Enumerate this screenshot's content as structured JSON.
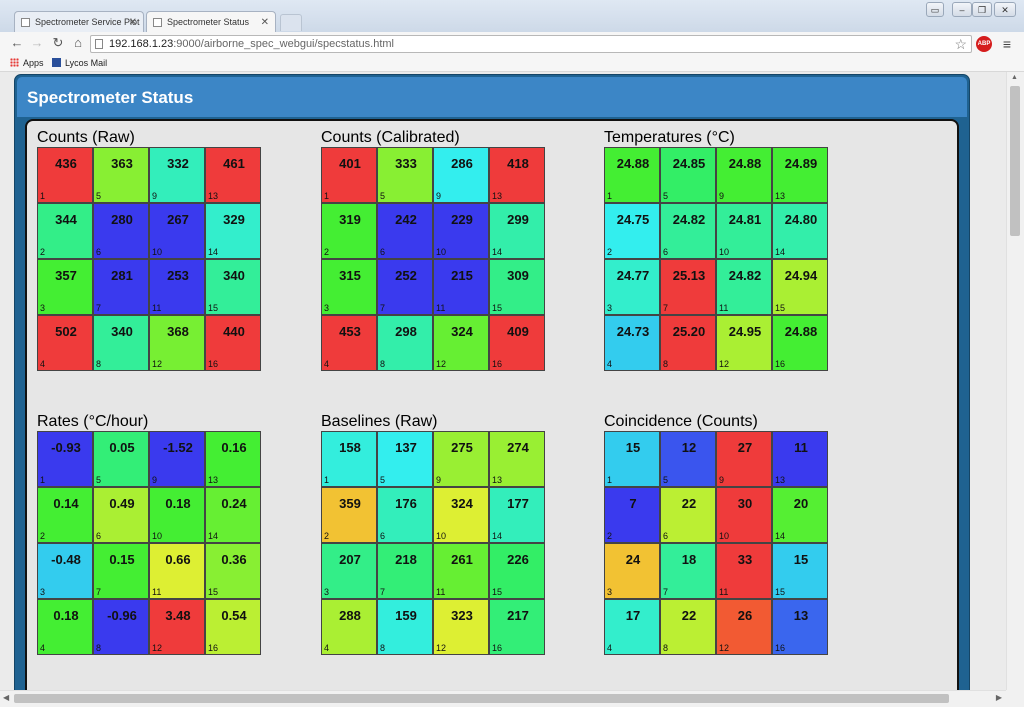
{
  "browser": {
    "tabs": [
      {
        "label": "Spectrometer Service Plot",
        "active": false
      },
      {
        "label": "Spectrometer Status",
        "active": true
      }
    ],
    "url_host": "192.168.1.23",
    "url_rest": ":9000/airborne_spec_webgui/specstatus.html",
    "bookmarks": [
      {
        "label": "Apps",
        "icon": "apps-grid-icon"
      },
      {
        "label": "Lycos Mail",
        "icon": "lycos-icon"
      }
    ],
    "abp_label": "ABP"
  },
  "app": {
    "title": "Spectrometer Status"
  },
  "panels": [
    {
      "title": "Counts (Raw)",
      "cells": [
        {
          "index": "1",
          "value": "436",
          "color": "#ef3b3b"
        },
        {
          "index": "2",
          "value": "344",
          "color": "#33ee88"
        },
        {
          "index": "3",
          "value": "357",
          "color": "#44ee33"
        },
        {
          "index": "4",
          "value": "502",
          "color": "#ef3b3b"
        },
        {
          "index": "5",
          "value": "363",
          "color": "#88ef33"
        },
        {
          "index": "6",
          "value": "280",
          "color": "#3a3aee"
        },
        {
          "index": "7",
          "value": "281",
          "color": "#3a3aee"
        },
        {
          "index": "8",
          "value": "340",
          "color": "#33ee99"
        },
        {
          "index": "9",
          "value": "332",
          "color": "#33eebb"
        },
        {
          "index": "10",
          "value": "267",
          "color": "#3a3aee"
        },
        {
          "index": "11",
          "value": "253",
          "color": "#3a3aee"
        },
        {
          "index": "12",
          "value": "368",
          "color": "#77ef33"
        },
        {
          "index": "13",
          "value": "461",
          "color": "#ef3b3b"
        },
        {
          "index": "14",
          "value": "329",
          "color": "#33eecc"
        },
        {
          "index": "15",
          "value": "340",
          "color": "#33ee99"
        },
        {
          "index": "16",
          "value": "440",
          "color": "#ef3b3b"
        }
      ]
    },
    {
      "title": "Counts (Calibrated)",
      "cells": [
        {
          "index": "1",
          "value": "401",
          "color": "#ef3b3b"
        },
        {
          "index": "2",
          "value": "319",
          "color": "#44ee33"
        },
        {
          "index": "3",
          "value": "315",
          "color": "#44ee33"
        },
        {
          "index": "4",
          "value": "453",
          "color": "#ef3b3b"
        },
        {
          "index": "5",
          "value": "333",
          "color": "#88ef33"
        },
        {
          "index": "6",
          "value": "242",
          "color": "#3a3aee"
        },
        {
          "index": "7",
          "value": "252",
          "color": "#3a3aee"
        },
        {
          "index": "8",
          "value": "298",
          "color": "#33eeaa"
        },
        {
          "index": "9",
          "value": "286",
          "color": "#33eeee"
        },
        {
          "index": "10",
          "value": "229",
          "color": "#3a3aee"
        },
        {
          "index": "11",
          "value": "215",
          "color": "#3a3aee"
        },
        {
          "index": "12",
          "value": "324",
          "color": "#66ef33"
        },
        {
          "index": "13",
          "value": "418",
          "color": "#ef3b3b"
        },
        {
          "index": "14",
          "value": "299",
          "color": "#33eeaa"
        },
        {
          "index": "15",
          "value": "309",
          "color": "#33ee88"
        },
        {
          "index": "16",
          "value": "409",
          "color": "#ef3b3b"
        }
      ]
    },
    {
      "title": "Temperatures (°C)",
      "cells": [
        {
          "index": "1",
          "value": "24.88",
          "color": "#44ee33"
        },
        {
          "index": "2",
          "value": "24.75",
          "color": "#33eeee"
        },
        {
          "index": "3",
          "value": "24.77",
          "color": "#33eecc"
        },
        {
          "index": "4",
          "value": "24.73",
          "color": "#33ccee"
        },
        {
          "index": "5",
          "value": "24.85",
          "color": "#33ee66"
        },
        {
          "index": "6",
          "value": "24.82",
          "color": "#33ee99"
        },
        {
          "index": "7",
          "value": "25.13",
          "color": "#ef3b3b"
        },
        {
          "index": "8",
          "value": "25.20",
          "color": "#ef3b3b"
        },
        {
          "index": "9",
          "value": "24.88",
          "color": "#44ee33"
        },
        {
          "index": "10",
          "value": "24.81",
          "color": "#33ee99"
        },
        {
          "index": "11",
          "value": "24.82",
          "color": "#33ee99"
        },
        {
          "index": "12",
          "value": "24.95",
          "color": "#aaef33"
        },
        {
          "index": "13",
          "value": "24.89",
          "color": "#44ee33"
        },
        {
          "index": "14",
          "value": "24.80",
          "color": "#33eeaa"
        },
        {
          "index": "15",
          "value": "24.94",
          "color": "#aaef33"
        },
        {
          "index": "16",
          "value": "24.88",
          "color": "#44ee33"
        }
      ]
    },
    {
      "title": "Rates (°C/hour)",
      "cells": [
        {
          "index": "1",
          "value": "-0.93",
          "color": "#3a3aee"
        },
        {
          "index": "2",
          "value": "0.14",
          "color": "#44ee33"
        },
        {
          "index": "3",
          "value": "-0.48",
          "color": "#33ccee"
        },
        {
          "index": "4",
          "value": "0.18",
          "color": "#44ee33"
        },
        {
          "index": "5",
          "value": "0.05",
          "color": "#33ee77"
        },
        {
          "index": "6",
          "value": "0.49",
          "color": "#aaef33"
        },
        {
          "index": "7",
          "value": "0.15",
          "color": "#44ee33"
        },
        {
          "index": "8",
          "value": "-0.96",
          "color": "#3a3aee"
        },
        {
          "index": "9",
          "value": "-1.52",
          "color": "#3a3aee"
        },
        {
          "index": "10",
          "value": "0.18",
          "color": "#44ee33"
        },
        {
          "index": "11",
          "value": "0.66",
          "color": "#ddef33"
        },
        {
          "index": "12",
          "value": "3.48",
          "color": "#ef3b3b"
        },
        {
          "index": "13",
          "value": "0.16",
          "color": "#44ee33"
        },
        {
          "index": "14",
          "value": "0.24",
          "color": "#66ef33"
        },
        {
          "index": "15",
          "value": "0.36",
          "color": "#88ef33"
        },
        {
          "index": "16",
          "value": "0.54",
          "color": "#bbef33"
        }
      ]
    },
    {
      "title": "Baselines (Raw)",
      "cells": [
        {
          "index": "1",
          "value": "158",
          "color": "#33eedd"
        },
        {
          "index": "2",
          "value": "359",
          "color": "#f2c233"
        },
        {
          "index": "3",
          "value": "207",
          "color": "#33ee88"
        },
        {
          "index": "4",
          "value": "288",
          "color": "#aaef33"
        },
        {
          "index": "5",
          "value": "137",
          "color": "#33eeee"
        },
        {
          "index": "6",
          "value": "176",
          "color": "#33eebb"
        },
        {
          "index": "7",
          "value": "218",
          "color": "#33ee77"
        },
        {
          "index": "8",
          "value": "159",
          "color": "#33eedd"
        },
        {
          "index": "9",
          "value": "275",
          "color": "#99ef33"
        },
        {
          "index": "10",
          "value": "324",
          "color": "#ddef33"
        },
        {
          "index": "11",
          "value": "261",
          "color": "#66ef33"
        },
        {
          "index": "12",
          "value": "323",
          "color": "#ddef33"
        },
        {
          "index": "13",
          "value": "274",
          "color": "#99ef33"
        },
        {
          "index": "14",
          "value": "177",
          "color": "#33eebb"
        },
        {
          "index": "15",
          "value": "226",
          "color": "#33ee66"
        },
        {
          "index": "16",
          "value": "217",
          "color": "#33ee77"
        }
      ]
    },
    {
      "title": "Coincidence (Counts)",
      "cells": [
        {
          "index": "1",
          "value": "15",
          "color": "#33ccee"
        },
        {
          "index": "2",
          "value": "7",
          "color": "#3a3aee"
        },
        {
          "index": "3",
          "value": "24",
          "color": "#f2c233"
        },
        {
          "index": "4",
          "value": "17",
          "color": "#33eecc"
        },
        {
          "index": "5",
          "value": "12",
          "color": "#3a55ee"
        },
        {
          "index": "6",
          "value": "22",
          "color": "#bbef33"
        },
        {
          "index": "7",
          "value": "18",
          "color": "#33ee99"
        },
        {
          "index": "8",
          "value": "22",
          "color": "#bbef33"
        },
        {
          "index": "9",
          "value": "27",
          "color": "#ef3b3b"
        },
        {
          "index": "10",
          "value": "30",
          "color": "#ef3b3b"
        },
        {
          "index": "11",
          "value": "33",
          "color": "#ef3b3b"
        },
        {
          "index": "12",
          "value": "26",
          "color": "#f25a33"
        },
        {
          "index": "13",
          "value": "11",
          "color": "#3a3aee"
        },
        {
          "index": "14",
          "value": "20",
          "color": "#55ef33"
        },
        {
          "index": "15",
          "value": "15",
          "color": "#33ccee"
        },
        {
          "index": "16",
          "value": "13",
          "color": "#3a66ee"
        }
      ]
    }
  ]
}
